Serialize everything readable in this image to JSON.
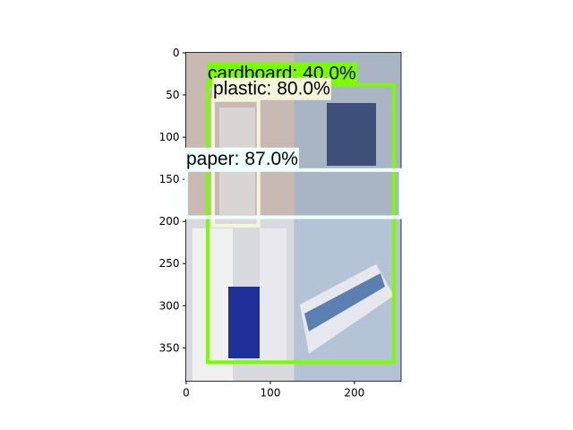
{
  "chart_data": {
    "type": "image",
    "xlim": [
      -0.5,
      255.5
    ],
    "ylim": [
      389.5,
      -0.5
    ],
    "xticks": [
      0,
      100,
      200
    ],
    "yticks": [
      0,
      50,
      100,
      150,
      200,
      250,
      300,
      350
    ],
    "boxes": [
      {
        "label": "cardboard: 40.0%",
        "color": "#7cfc00",
        "xmin": 25.5,
        "ymin": 38,
        "xmax": 247,
        "ymax": 367
      },
      {
        "label": "plastic: 80.0%",
        "color": "#f5f5dc",
        "xmin": 32,
        "ymin": 56,
        "xmax": 86,
        "ymax": 205
      },
      {
        "label": "paper: 87.0%",
        "color": "#f0ffff",
        "xmin": 0,
        "ymin": 139,
        "xmax": 255,
        "ymax": 195
      }
    ]
  }
}
